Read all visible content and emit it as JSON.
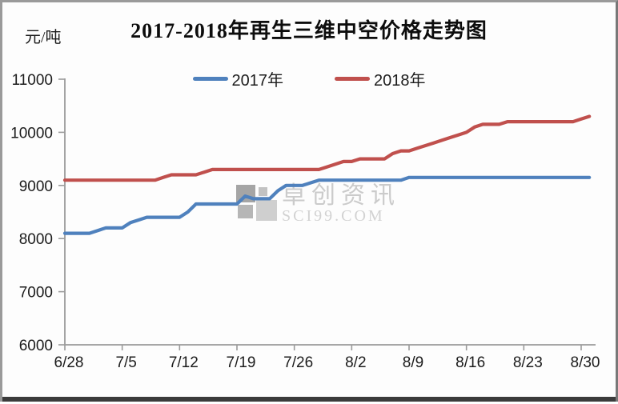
{
  "title": "2017-2018年再生三维中空价格走势图",
  "y_unit_label": "元/吨",
  "legend": {
    "items": [
      {
        "label": "2017年",
        "color": "#4F81BD"
      },
      {
        "label": "2018年",
        "color": "#C0504D"
      }
    ]
  },
  "watermark": {
    "name": "卓创资讯",
    "site": "SCI99.COM"
  },
  "colors": {
    "series_2017": "#4F81BD",
    "series_2018": "#C0504D",
    "axis": "#9b9b9b",
    "text": "#1c1c1c"
  },
  "chart_data": {
    "type": "line",
    "title": "2017-2018年再生三维中空价格走势图",
    "ylabel": "元/吨",
    "ylim": [
      6000,
      11000
    ],
    "yticks": [
      6000,
      7000,
      8000,
      9000,
      10000,
      11000
    ],
    "grid": false,
    "legend_position": "top-center",
    "xtick_labels": [
      "6/28",
      "7/5",
      "7/12",
      "7/19",
      "7/26",
      "8/2",
      "8/9",
      "8/16",
      "8/23",
      "8/30"
    ],
    "xtick_positions": [
      0,
      7,
      14,
      21,
      28,
      35,
      42,
      49,
      56,
      63
    ],
    "x_dates": [
      "6/28",
      "6/29",
      "6/30",
      "7/1",
      "7/2",
      "7/3",
      "7/4",
      "7/5",
      "7/6",
      "7/7",
      "7/8",
      "7/9",
      "7/10",
      "7/11",
      "7/12",
      "7/13",
      "7/14",
      "7/15",
      "7/16",
      "7/17",
      "7/18",
      "7/19",
      "7/20",
      "7/21",
      "7/22",
      "7/23",
      "7/24",
      "7/25",
      "7/26",
      "7/27",
      "7/28",
      "7/29",
      "7/30",
      "7/31",
      "8/1",
      "8/2",
      "8/3",
      "8/4",
      "8/5",
      "8/6",
      "8/7",
      "8/8",
      "8/9",
      "8/10",
      "8/11",
      "8/12",
      "8/13",
      "8/14",
      "8/15",
      "8/16",
      "8/17",
      "8/18",
      "8/19",
      "8/20",
      "8/21",
      "8/22",
      "8/23",
      "8/24",
      "8/25",
      "8/26",
      "8/27",
      "8/28",
      "8/29",
      "8/30",
      "8/31"
    ],
    "series": [
      {
        "name": "2017年",
        "color": "#4F81BD",
        "values": [
          8100,
          8100,
          8100,
          8100,
          8150,
          8200,
          8200,
          8200,
          8300,
          8350,
          8400,
          8400,
          8400,
          8400,
          8400,
          8500,
          8650,
          8650,
          8650,
          8650,
          8650,
          8650,
          8800,
          8750,
          8750,
          8750,
          8900,
          9000,
          9000,
          9000,
          9050,
          9100,
          9100,
          9100,
          9100,
          9100,
          9100,
          9100,
          9100,
          9100,
          9100,
          9100,
          9150,
          9150,
          9150,
          9150,
          9150,
          9150,
          9150,
          9150,
          9150,
          9150,
          9150,
          9150,
          9150,
          9150,
          9150,
          9150,
          9150,
          9150,
          9150,
          9150,
          9150,
          9150,
          9150
        ]
      },
      {
        "name": "2018年",
        "color": "#C0504D",
        "values": [
          9100,
          9100,
          9100,
          9100,
          9100,
          9100,
          9100,
          9100,
          9100,
          9100,
          9100,
          9100,
          9150,
          9200,
          9200,
          9200,
          9200,
          9250,
          9300,
          9300,
          9300,
          9300,
          9300,
          9300,
          9300,
          9300,
          9300,
          9300,
          9300,
          9300,
          9300,
          9300,
          9350,
          9400,
          9450,
          9450,
          9500,
          9500,
          9500,
          9500,
          9600,
          9650,
          9650,
          9700,
          9750,
          9800,
          9850,
          9900,
          9950,
          10000,
          10100,
          10150,
          10150,
          10150,
          10200,
          10200,
          10200,
          10200,
          10200,
          10200,
          10200,
          10200,
          10200,
          10250,
          10300
        ]
      }
    ]
  }
}
